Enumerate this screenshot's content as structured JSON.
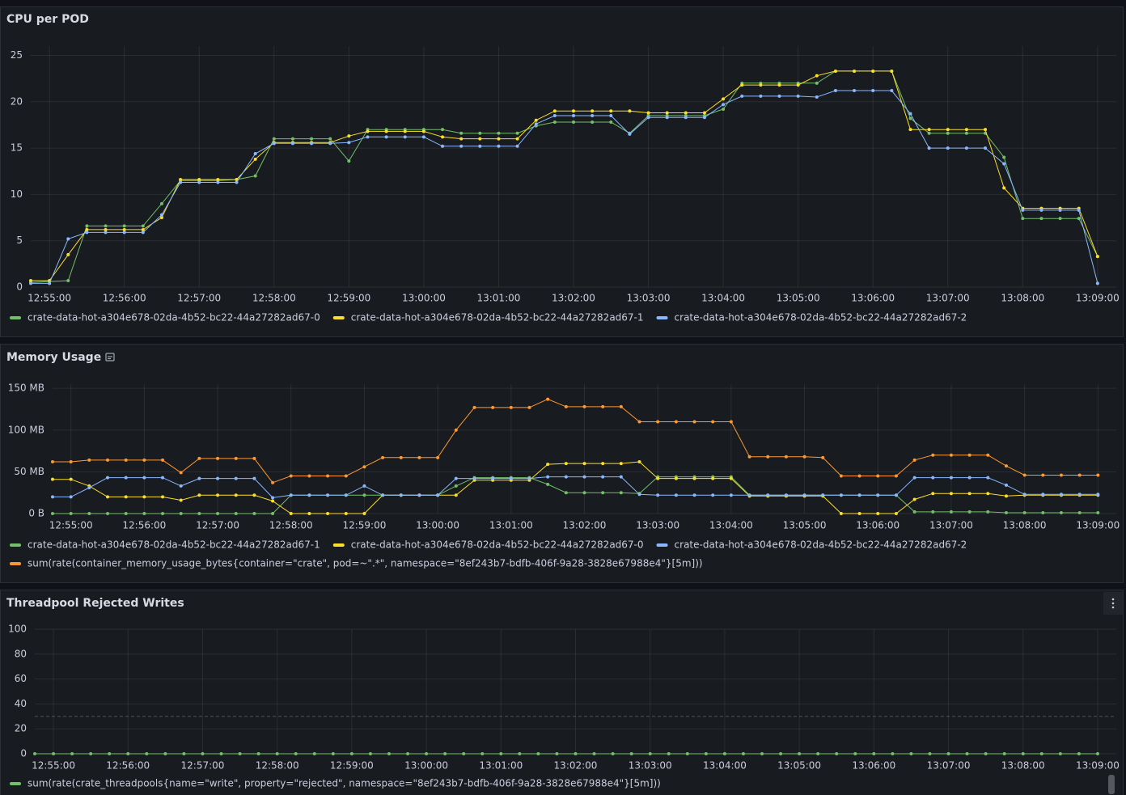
{
  "chart_data": [
    {
      "type": "line",
      "title": "CPU per POD",
      "x": [
        "12:54:45",
        "12:55:00",
        "12:55:15",
        "12:55:30",
        "12:55:45",
        "12:56:00",
        "12:56:15",
        "12:56:30",
        "12:56:45",
        "12:57:00",
        "12:57:15",
        "12:57:30",
        "12:57:45",
        "12:58:00",
        "12:58:15",
        "12:58:30",
        "12:58:45",
        "12:59:00",
        "12:59:15",
        "12:59:30",
        "12:59:45",
        "13:00:00",
        "13:00:15",
        "13:00:30",
        "13:00:45",
        "13:01:00",
        "13:01:15",
        "13:01:30",
        "13:01:45",
        "13:02:00",
        "13:02:15",
        "13:02:30",
        "13:02:45",
        "13:03:00",
        "13:03:15",
        "13:03:30",
        "13:03:45",
        "13:04:00",
        "13:04:15",
        "13:04:30",
        "13:04:45",
        "13:05:00",
        "13:05:15",
        "13:05:30",
        "13:05:45",
        "13:06:00",
        "13:06:15",
        "13:06:30",
        "13:06:45",
        "13:07:00",
        "13:07:15",
        "13:07:30",
        "13:07:45",
        "13:08:00",
        "13:08:15",
        "13:08:30",
        "13:08:45",
        "13:09:00"
      ],
      "xlim": [
        "12:54:45",
        "13:09:15"
      ],
      "xticks": [
        "12:55:00",
        "12:56:00",
        "12:57:00",
        "12:58:00",
        "12:59:00",
        "13:00:00",
        "13:01:00",
        "13:02:00",
        "13:03:00",
        "13:04:00",
        "13:05:00",
        "13:06:00",
        "13:07:00",
        "13:08:00",
        "13:09:00"
      ],
      "ylim": [
        0,
        26
      ],
      "yticks": [
        0,
        5,
        10,
        15,
        20,
        25
      ],
      "grid": true,
      "series": [
        {
          "name": "crate-data-hot-a304e678-02da-4b52-bc22-44a27282ad67-0",
          "color": "#73bf69",
          "values": [
            0.5,
            0.6,
            0.7,
            6.6,
            6.6,
            6.6,
            6.6,
            9.0,
            11.5,
            11.5,
            11.5,
            11.6,
            12.0,
            16.0,
            16.0,
            16.0,
            16.0,
            13.6,
            17.0,
            17.0,
            17.0,
            17.0,
            17.0,
            16.6,
            16.6,
            16.6,
            16.6,
            17.4,
            17.8,
            17.8,
            17.8,
            17.8,
            16.6,
            18.5,
            18.5,
            18.5,
            18.5,
            19.2,
            22.0,
            22.0,
            22.0,
            22.0,
            22.0,
            23.3,
            23.3,
            23.3,
            23.3,
            18.2,
            16.6,
            16.6,
            16.6,
            16.6,
            14.0,
            7.4,
            7.4,
            7.4,
            7.4,
            3.3
          ]
        },
        {
          "name": "crate-data-hot-a304e678-02da-4b52-bc22-44a27282ad67-1",
          "color": "#fade2a",
          "values": [
            0.7,
            0.7,
            3.5,
            6.2,
            6.2,
            6.2,
            6.2,
            7.5,
            11.6,
            11.6,
            11.6,
            11.6,
            13.8,
            15.6,
            15.6,
            15.6,
            15.6,
            16.3,
            16.8,
            16.8,
            16.8,
            16.8,
            16.2,
            16.0,
            16.0,
            16.0,
            16.0,
            18.0,
            19.0,
            19.0,
            19.0,
            19.0,
            19.0,
            18.8,
            18.8,
            18.8,
            18.8,
            20.3,
            21.8,
            21.8,
            21.8,
            21.8,
            22.8,
            23.3,
            23.3,
            23.3,
            23.3,
            17.0,
            17.0,
            17.0,
            17.0,
            17.0,
            10.7,
            8.5,
            8.5,
            8.5,
            8.5,
            3.3
          ]
        },
        {
          "name": "crate-data-hot-a304e678-02da-4b52-bc22-44a27282ad67-2",
          "color": "#8ab8ff",
          "values": [
            0.4,
            0.4,
            5.2,
            5.9,
            5.9,
            5.9,
            5.9,
            7.8,
            11.3,
            11.3,
            11.3,
            11.3,
            14.4,
            15.5,
            15.5,
            15.5,
            15.5,
            15.6,
            16.2,
            16.2,
            16.2,
            16.2,
            15.2,
            15.2,
            15.2,
            15.2,
            15.2,
            17.6,
            18.5,
            18.5,
            18.5,
            18.5,
            16.5,
            18.3,
            18.3,
            18.3,
            18.3,
            19.7,
            20.6,
            20.6,
            20.6,
            20.6,
            20.5,
            21.2,
            21.2,
            21.2,
            21.2,
            18.7,
            15.0,
            15.0,
            15.0,
            15.0,
            13.3,
            8.3,
            8.3,
            8.3,
            8.3,
            0.4
          ]
        }
      ]
    },
    {
      "type": "line",
      "title": "Memory Usage",
      "x": [
        "12:54:45",
        "12:55:00",
        "12:55:15",
        "12:55:30",
        "12:55:45",
        "12:56:00",
        "12:56:15",
        "12:56:30",
        "12:56:45",
        "12:57:00",
        "12:57:15",
        "12:57:30",
        "12:57:45",
        "12:58:00",
        "12:58:15",
        "12:58:30",
        "12:58:45",
        "12:59:00",
        "12:59:15",
        "12:59:30",
        "12:59:45",
        "13:00:00",
        "13:00:15",
        "13:00:30",
        "13:00:45",
        "13:01:00",
        "13:01:15",
        "13:01:30",
        "13:01:45",
        "13:02:00",
        "13:02:15",
        "13:02:30",
        "13:02:45",
        "13:03:00",
        "13:03:15",
        "13:03:30",
        "13:03:45",
        "13:04:00",
        "13:04:15",
        "13:04:30",
        "13:04:45",
        "13:05:00",
        "13:05:15",
        "13:05:30",
        "13:05:45",
        "13:06:00",
        "13:06:15",
        "13:06:30",
        "13:06:45",
        "13:07:00",
        "13:07:15",
        "13:07:30",
        "13:07:45",
        "13:08:00",
        "13:08:15",
        "13:08:30",
        "13:08:45",
        "13:09:00"
      ],
      "xlim": [
        "12:54:45",
        "13:09:15"
      ],
      "xticks": [
        "12:55:00",
        "12:56:00",
        "12:57:00",
        "12:58:00",
        "12:59:00",
        "13:00:00",
        "13:01:00",
        "13:02:00",
        "13:03:00",
        "13:04:00",
        "13:05:00",
        "13:06:00",
        "13:07:00",
        "13:08:00",
        "13:09:00"
      ],
      "ylim": [
        0,
        155
      ],
      "yticks": [
        {
          "value": 0,
          "label": "0 B"
        },
        {
          "value": 50,
          "label": "50 MB"
        },
        {
          "value": 100,
          "label": "100 MB"
        },
        {
          "value": 150,
          "label": "150 MB"
        }
      ],
      "grid": true,
      "series": [
        {
          "name": "crate-data-hot-a304e678-02da-4b52-bc22-44a27282ad67-1",
          "color": "#73bf69",
          "values": [
            0,
            0,
            0,
            0,
            0,
            0,
            0,
            0,
            0,
            0,
            0,
            0,
            0,
            22,
            22,
            22,
            22,
            22,
            22,
            22,
            22,
            22,
            33,
            43,
            43,
            43,
            43,
            35,
            25,
            25,
            25,
            25,
            24,
            44,
            44,
            44,
            44,
            44,
            22,
            22,
            22,
            22,
            22,
            22,
            22,
            22,
            22,
            2,
            2,
            2,
            2,
            2,
            1,
            1,
            1,
            1,
            1,
            1
          ]
        },
        {
          "name": "crate-data-hot-a304e678-02da-4b52-bc22-44a27282ad67-0",
          "color": "#fade2a",
          "values": [
            41,
            41,
            33,
            20,
            20,
            20,
            20,
            16,
            22,
            22,
            22,
            22,
            15,
            0,
            0,
            0,
            0,
            0,
            22,
            22,
            22,
            22,
            22,
            40,
            40,
            40,
            40,
            59,
            60,
            60,
            60,
            60,
            62,
            42,
            42,
            42,
            42,
            42,
            21,
            21,
            21,
            21,
            21,
            0,
            0,
            0,
            0,
            17,
            24,
            24,
            24,
            24,
            21,
            22,
            22,
            22,
            22,
            22
          ]
        },
        {
          "name": "crate-data-hot-a304e678-02da-4b52-bc22-44a27282ad67-2",
          "color": "#8ab8ff",
          "values": [
            20,
            20,
            31,
            43,
            43,
            43,
            43,
            33,
            42,
            42,
            42,
            42,
            19,
            22,
            22,
            22,
            22,
            33,
            22,
            22,
            22,
            22,
            42,
            42,
            42,
            42,
            42,
            44,
            44,
            44,
            44,
            44,
            23,
            22,
            22,
            22,
            22,
            22,
            22,
            22,
            22,
            22,
            22,
            22,
            22,
            22,
            22,
            43,
            43,
            43,
            43,
            43,
            34,
            23,
            23,
            23,
            23,
            23
          ]
        },
        {
          "name": "sum(rate(container_memory_usage_bytes{container=\"crate\", pod=~\".*\", namespace=\"8ef243b7-bdfb-406f-9a28-3828e67988e4\"}[5m]))",
          "color": "#ff9830",
          "values": [
            62,
            62,
            64,
            64,
            64,
            64,
            64,
            49,
            66,
            66,
            66,
            66,
            37,
            45,
            45,
            45,
            45,
            56,
            67,
            67,
            67,
            67,
            100,
            127,
            127,
            127,
            127,
            137,
            128,
            128,
            128,
            128,
            110,
            110,
            110,
            110,
            110,
            110,
            68,
            68,
            68,
            68,
            67,
            45,
            45,
            45,
            45,
            64,
            70,
            70,
            70,
            70,
            57,
            46,
            46,
            46,
            46,
            46
          ]
        }
      ]
    },
    {
      "type": "line",
      "title": "Threadpool Rejected Writes",
      "x": [
        "12:54:45",
        "12:55:00",
        "12:55:15",
        "12:55:30",
        "12:55:45",
        "12:56:00",
        "12:56:15",
        "12:56:30",
        "12:56:45",
        "12:57:00",
        "12:57:15",
        "12:57:30",
        "12:57:45",
        "12:58:00",
        "12:58:15",
        "12:58:30",
        "12:58:45",
        "12:59:00",
        "12:59:15",
        "12:59:30",
        "12:59:45",
        "13:00:00",
        "13:00:15",
        "13:00:30",
        "13:00:45",
        "13:01:00",
        "13:01:15",
        "13:01:30",
        "13:01:45",
        "13:02:00",
        "13:02:15",
        "13:02:30",
        "13:02:45",
        "13:03:00",
        "13:03:15",
        "13:03:30",
        "13:03:45",
        "13:04:00",
        "13:04:15",
        "13:04:30",
        "13:04:45",
        "13:05:00",
        "13:05:15",
        "13:05:30",
        "13:05:45",
        "13:06:00",
        "13:06:15",
        "13:06:30",
        "13:06:45",
        "13:07:00",
        "13:07:15",
        "13:07:30",
        "13:07:45",
        "13:08:00",
        "13:08:15",
        "13:08:30",
        "13:08:45",
        "13:09:00"
      ],
      "xlim": [
        "12:54:45",
        "13:09:15"
      ],
      "xticks": [
        "12:55:00",
        "12:56:00",
        "12:57:00",
        "12:58:00",
        "12:59:00",
        "13:00:00",
        "13:01:00",
        "13:02:00",
        "13:03:00",
        "13:04:00",
        "13:05:00",
        "13:06:00",
        "13:07:00",
        "13:08:00",
        "13:09:00"
      ],
      "ylim": [
        0,
        100
      ],
      "yticks": [
        0,
        20,
        40,
        60,
        80,
        100
      ],
      "grid": true,
      "threshold": 30,
      "series": [
        {
          "name": "sum(rate(crate_threadpools{name=\"write\", property=\"rejected\", namespace=\"8ef243b7-bdfb-406f-9a28-3828e67988e4\"}[5m]))",
          "color": "#73bf69",
          "values": [
            0,
            0,
            0,
            0,
            0,
            0,
            0,
            0,
            0,
            0,
            0,
            0,
            0,
            0,
            0,
            0,
            0,
            0,
            0,
            0,
            0,
            0,
            0,
            0,
            0,
            0,
            0,
            0,
            0,
            0,
            0,
            0,
            0,
            0,
            0,
            0,
            0,
            0,
            0,
            0,
            0,
            0,
            0,
            0,
            0,
            0,
            0,
            0,
            0,
            0,
            0,
            0,
            0,
            0,
            0,
            0,
            0,
            0
          ]
        }
      ]
    }
  ]
}
